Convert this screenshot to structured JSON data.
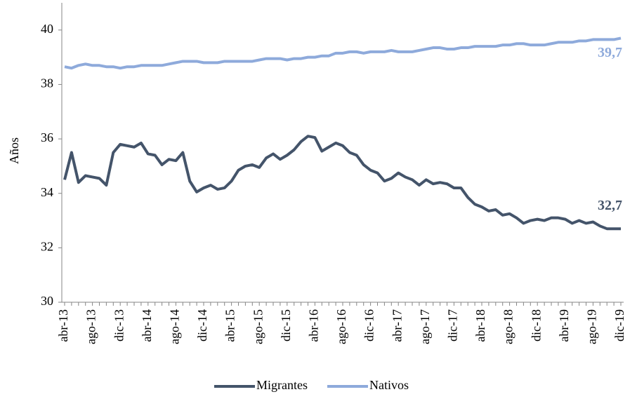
{
  "chart_data": {
    "type": "line",
    "y_label": "Años",
    "categories": [
      "abr-13",
      null,
      null,
      null,
      "ago-13",
      null,
      null,
      null,
      "dic-13",
      null,
      null,
      null,
      "abr-14",
      null,
      null,
      null,
      "ago-14",
      null,
      null,
      null,
      "dic-14",
      null,
      null,
      null,
      "abr-15",
      null,
      null,
      null,
      "ago-15",
      null,
      null,
      null,
      "dic-15",
      null,
      null,
      null,
      "abr-16",
      null,
      null,
      null,
      "ago-16",
      null,
      null,
      null,
      "dic-16",
      null,
      null,
      null,
      "abr-17",
      null,
      null,
      null,
      "ago-17",
      null,
      null,
      null,
      "dic-17",
      null,
      null,
      null,
      "abr-18",
      null,
      null,
      null,
      "ago-18",
      null,
      null,
      null,
      "dic-18",
      null,
      null,
      null,
      "abr-19",
      null,
      null,
      null,
      "ago-19",
      null,
      null,
      null,
      "dic-19"
    ],
    "series": [
      {
        "name": "Migrantes",
        "color": "#44546a",
        "values": [
          34.5,
          35.5,
          34.4,
          34.65,
          34.6,
          34.55,
          34.3,
          35.5,
          35.8,
          35.75,
          35.7,
          35.85,
          35.45,
          35.4,
          35.05,
          35.25,
          35.2,
          35.5,
          34.45,
          34.05,
          34.2,
          34.3,
          34.15,
          34.2,
          34.45,
          34.85,
          35.0,
          35.05,
          34.95,
          35.3,
          35.45,
          35.25,
          35.4,
          35.6,
          35.9,
          36.1,
          36.05,
          35.55,
          35.7,
          35.85,
          35.75,
          35.5,
          35.4,
          35.05,
          34.85,
          34.75,
          34.45,
          34.55,
          34.75,
          34.6,
          34.5,
          34.3,
          34.5,
          34.35,
          34.4,
          34.35,
          34.2,
          34.2,
          33.85,
          33.6,
          33.5,
          33.35,
          33.4,
          33.2,
          33.25,
          33.1,
          32.9,
          33.0,
          33.05,
          33.0,
          33.1,
          33.1,
          33.05,
          32.9,
          33.0,
          32.9,
          32.95,
          32.8,
          32.7,
          32.7,
          32.7
        ],
        "value_labels": [
          null,
          null,
          null,
          null,
          null,
          null,
          null,
          null,
          null,
          null,
          null,
          null,
          null,
          null,
          null,
          null,
          null,
          null,
          null,
          null,
          null,
          null,
          null,
          null,
          null,
          null,
          null,
          null,
          null,
          null,
          null,
          null,
          null,
          null,
          null,
          null,
          null,
          null,
          null,
          null,
          null,
          null,
          null,
          null,
          null,
          null,
          null,
          null,
          null,
          null,
          null,
          null,
          null,
          null,
          null,
          null,
          null,
          null,
          null,
          null,
          null,
          null,
          null,
          null,
          null,
          null,
          null,
          null,
          null,
          null,
          null,
          null,
          null,
          null,
          null,
          null,
          null,
          null,
          null,
          null,
          "32,7"
        ]
      },
      {
        "name": "Nativos",
        "color": "#8eaadb",
        "values": [
          38.65,
          38.6,
          38.7,
          38.75,
          38.7,
          38.7,
          38.65,
          38.65,
          38.6,
          38.65,
          38.65,
          38.7,
          38.7,
          38.7,
          38.7,
          38.75,
          38.8,
          38.85,
          38.85,
          38.85,
          38.8,
          38.8,
          38.8,
          38.85,
          38.85,
          38.85,
          38.85,
          38.85,
          38.9,
          38.95,
          38.95,
          38.95,
          38.9,
          38.95,
          38.95,
          39.0,
          39.0,
          39.05,
          39.05,
          39.15,
          39.15,
          39.2,
          39.2,
          39.15,
          39.2,
          39.2,
          39.2,
          39.25,
          39.2,
          39.2,
          39.2,
          39.25,
          39.3,
          39.35,
          39.35,
          39.3,
          39.3,
          39.35,
          39.35,
          39.4,
          39.4,
          39.4,
          39.4,
          39.45,
          39.45,
          39.5,
          39.5,
          39.45,
          39.45,
          39.45,
          39.5,
          39.55,
          39.55,
          39.55,
          39.6,
          39.6,
          39.65,
          39.65,
          39.65,
          39.65,
          39.7
        ],
        "value_labels": [
          null,
          null,
          null,
          null,
          null,
          null,
          null,
          null,
          null,
          null,
          null,
          null,
          null,
          null,
          null,
          null,
          null,
          null,
          null,
          null,
          null,
          null,
          null,
          null,
          null,
          null,
          null,
          null,
          null,
          null,
          null,
          null,
          null,
          null,
          null,
          null,
          null,
          null,
          null,
          null,
          null,
          null,
          null,
          null,
          null,
          null,
          null,
          null,
          null,
          null,
          null,
          null,
          null,
          null,
          null,
          null,
          null,
          null,
          null,
          null,
          null,
          null,
          null,
          null,
          null,
          null,
          null,
          null,
          null,
          null,
          null,
          null,
          null,
          null,
          null,
          null,
          null,
          null,
          null,
          null,
          "39,7"
        ]
      }
    ],
    "ylim": [
      30,
      41
    ],
    "yticks": [
      30,
      32,
      34,
      36,
      38,
      40
    ],
    "grid": false,
    "legend": "bottom"
  }
}
